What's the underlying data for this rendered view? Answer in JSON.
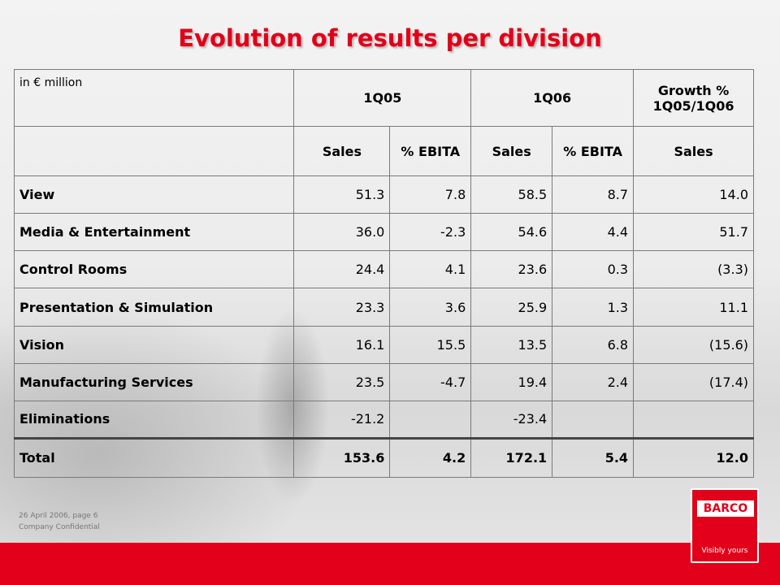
{
  "title": "Evolution of results per division",
  "table": {
    "unit_label": "in € million",
    "period_headers": [
      "1Q05",
      "1Q06",
      "Growth % 1Q05/1Q06"
    ],
    "sub_headers": [
      "Sales",
      "% EBITA",
      "Sales",
      "% EBITA",
      "Sales"
    ],
    "rows": [
      {
        "label": "View",
        "values": [
          "51.3",
          "7.8",
          "58.5",
          "8.7",
          "14.0"
        ]
      },
      {
        "label": "Media & Entertainment",
        "values": [
          "36.0",
          "-2.3",
          "54.6",
          "4.4",
          "51.7"
        ]
      },
      {
        "label": "Control Rooms",
        "values": [
          "24.4",
          "4.1",
          "23.6",
          "0.3",
          "(3.3)"
        ]
      },
      {
        "label": "Presentation & Simulation",
        "values": [
          "23.3",
          "3.6",
          "25.9",
          "1.3",
          "11.1"
        ]
      },
      {
        "label": "Vision",
        "values": [
          "16.1",
          "15.5",
          "13.5",
          "6.8",
          "(15.6)"
        ]
      },
      {
        "label": "Manufacturing Services",
        "values": [
          "23.5",
          "-4.7",
          "19.4",
          "2.4",
          "(17.4)"
        ]
      },
      {
        "label": "Eliminations",
        "values": [
          "-21.2",
          "",
          "-23.4",
          "",
          ""
        ]
      }
    ],
    "total": {
      "label": "Total",
      "values": [
        "153.6",
        "4.2",
        "172.1",
        "5.4",
        "12.0"
      ]
    }
  },
  "footer": {
    "date_page": "26 April 2006, page 6",
    "confidential": "Company Confidential"
  },
  "logo": {
    "brand": "BARCO",
    "tagline": "Visibly yours"
  },
  "colors": {
    "accent": "#e2001a"
  }
}
